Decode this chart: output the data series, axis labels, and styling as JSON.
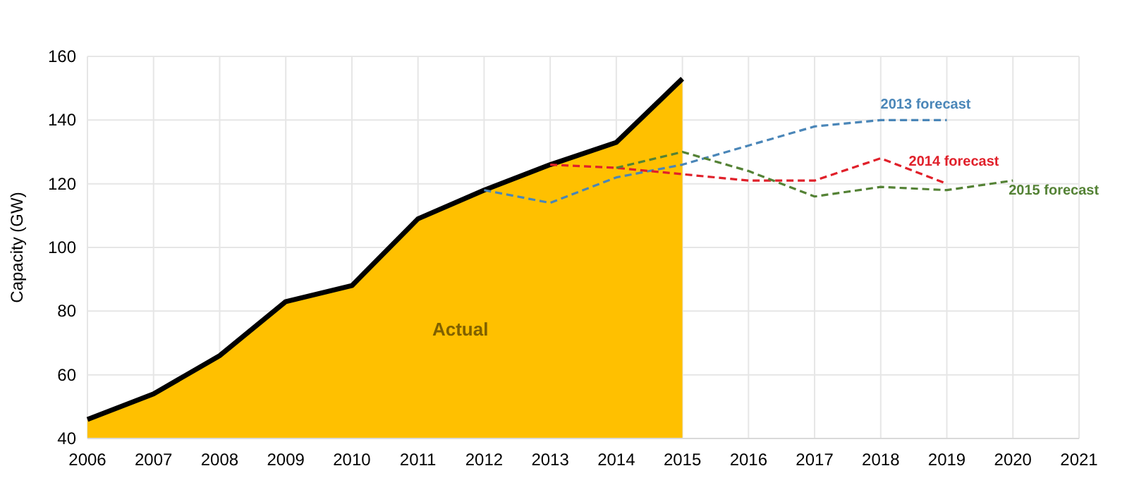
{
  "chart_data": {
    "type": "line",
    "ylabel": "Capacity (GW)",
    "categories": [
      "2006",
      "2007",
      "2008",
      "2009",
      "2010",
      "2011",
      "2012",
      "2013",
      "2014",
      "2015",
      "2016",
      "2017",
      "2018",
      "2019",
      "2020",
      "2021"
    ],
    "series": [
      {
        "name": "Actual",
        "type": "area",
        "color": "#ffc000",
        "values": [
          46,
          54,
          66,
          83,
          88,
          109,
          118,
          126,
          133,
          153,
          null,
          null,
          null,
          null,
          null,
          null
        ]
      },
      {
        "name": "2013 forecast",
        "color": "#4a86b8",
        "values": [
          null,
          null,
          null,
          null,
          null,
          null,
          118,
          114,
          122,
          126,
          132,
          138,
          140,
          140,
          null,
          null
        ]
      },
      {
        "name": "2014 forecast",
        "color": "#e0202a",
        "values": [
          null,
          null,
          null,
          null,
          null,
          null,
          null,
          126,
          125,
          123,
          121,
          121,
          128,
          120,
          null,
          null
        ]
      },
      {
        "name": "2015 forecast",
        "color": "#548235",
        "values": [
          null,
          null,
          null,
          null,
          null,
          null,
          null,
          null,
          125,
          130,
          124,
          116,
          119,
          118,
          121,
          null
        ]
      }
    ],
    "ylim": [
      40,
      160
    ],
    "yticks": [
      40,
      60,
      80,
      100,
      120,
      140,
      160
    ],
    "grid": true,
    "line_style": "dashed"
  }
}
